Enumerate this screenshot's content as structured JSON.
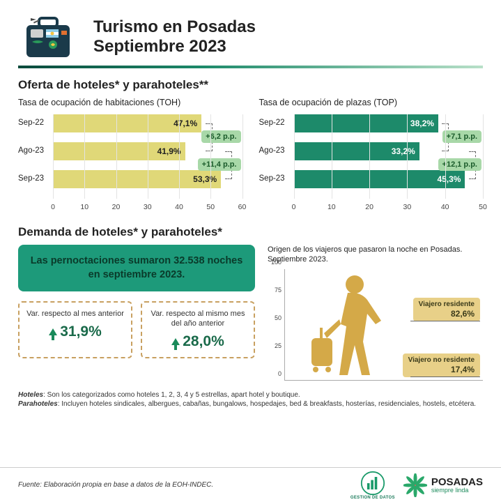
{
  "header": {
    "title_line1": "Turismo en Posadas",
    "title_line2": "Septiembre 2023"
  },
  "section1": {
    "title": "Oferta de hoteles* y parahoteles**",
    "toh": {
      "title": "Tasa de ocupación de habitaciones (TOH)",
      "type": "bar_horizontal",
      "categories": [
        "Sep-22",
        "Ago-23",
        "Sep-23"
      ],
      "values": [
        47.1,
        41.9,
        53.3
      ],
      "value_labels": [
        "47,1%",
        "41,9%",
        "53,3%"
      ],
      "bar_color": "#e0d878",
      "text_color": "#222222",
      "xlim": [
        0,
        60
      ],
      "xtick_step": 10,
      "xtick_labels": [
        "0",
        "10",
        "20",
        "30",
        "40",
        "50",
        "60"
      ],
      "deltas": [
        {
          "between": [
            0,
            1
          ],
          "label": "+6,2 p.p."
        },
        {
          "between": [
            1,
            2
          ],
          "label": "+11,4 p.p."
        }
      ],
      "delta_bg": "#a8d8a8",
      "delta_color": "#1a5a2a"
    },
    "top": {
      "title": "Tasa de ocupación de plazas (TOP)",
      "type": "bar_horizontal",
      "categories": [
        "Sep-22",
        "Ago-23",
        "Sep-23"
      ],
      "values": [
        38.2,
        33.2,
        45.3
      ],
      "value_labels": [
        "38,2%",
        "33,2%",
        "45,3%"
      ],
      "bar_color": "#1d8a6a",
      "text_color": "#ffffff",
      "xlim": [
        0,
        50
      ],
      "xtick_step": 10,
      "xtick_labels": [
        "0",
        "10",
        "20",
        "30",
        "40",
        "50"
      ],
      "deltas": [
        {
          "between": [
            0,
            1
          ],
          "label": "+7,1 p.p."
        },
        {
          "between": [
            1,
            2
          ],
          "label": "+12,1 p.p."
        }
      ],
      "delta_bg": "#a8d8a8",
      "delta_color": "#1a5a2a"
    }
  },
  "section2": {
    "title": "Demanda de hoteles* y parahoteles*",
    "highlight": "Las pernoctaciones sumaron 32.538 noches en septiembre 2023.",
    "highlight_bg": "#1d9a7a",
    "var_prev_month": {
      "label": "Var. respecto al mes anterior",
      "value": "31,9%"
    },
    "var_prev_year": {
      "label": "Var. respecto al mismo mes del año anterior",
      "value": "28,0%"
    },
    "var_box_border": "#c8a060",
    "var_value_color": "#1a6a4a",
    "origin": {
      "title": "Origen de los viajeros que pasaron la noche en Posadas. Septiembre 2023.",
      "ylim": [
        0,
        100
      ],
      "ytick_step": 25,
      "ytick_labels": [
        "0",
        "25",
        "50",
        "75",
        "100"
      ],
      "resident": {
        "label": "Viajero residente",
        "value": 82.6,
        "value_label": "82,6%"
      },
      "nonresident": {
        "label": "Viajero no residente",
        "value": 17.4,
        "value_label": "17,4%"
      },
      "badge_bg": "#e8d088",
      "traveler_color": "#d4a948"
    }
  },
  "definitions": {
    "hoteles_label": "Hoteles",
    "hoteles_text": ": Son los categorizados como hoteles 1, 2, 3, 4 y 5 estrellas, apart hotel y boutique.",
    "parahoteles_label": "Parahoteles",
    "parahoteles_text": ": Incluyen hoteles sindicales, albergues, cabañas, bungalows, hospedajes, bed & breakfasts, hosterías, residenciales, hostels, etcétera."
  },
  "footer": {
    "source": "Fuente: Elaboración propia en base a datos de la EOH-INDEC.",
    "logo_gestion": "GESTION DE DATOS",
    "logo_posadas_1": "POSADAS",
    "logo_posadas_2": "siempre linda"
  },
  "colors": {
    "grid": "#e3e3e3",
    "text": "#222222"
  }
}
